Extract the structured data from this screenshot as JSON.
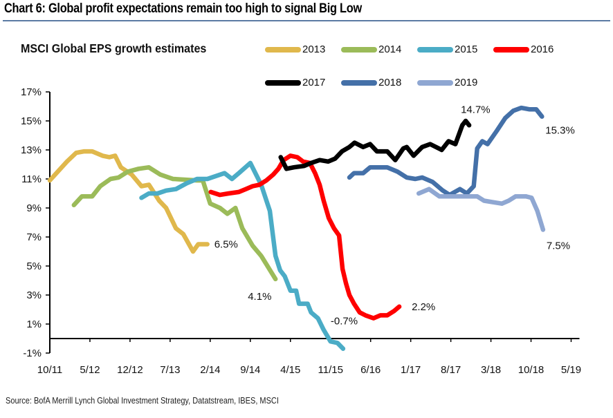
{
  "header": {
    "title": "Chart 6: Global profit expectations remain too high to signal Big Low"
  },
  "footer": {
    "source": "Source:  BofA Merrill Lynch Global Investment Strategy, Datatstream, IBES, MSCI"
  },
  "chart_data": {
    "type": "line",
    "title": "MSCI Global EPS growth estimates",
    "xlabel": "",
    "ylabel": "",
    "x_unit": "months since 10/11",
    "xlim": [
      0,
      91
    ],
    "ylim": [
      -1,
      17
    ],
    "x_ticks": [
      {
        "m": 0,
        "label": "10/11"
      },
      {
        "m": 7,
        "label": "5/12"
      },
      {
        "m": 14,
        "label": "12/12"
      },
      {
        "m": 21,
        "label": "7/13"
      },
      {
        "m": 28,
        "label": "2/14"
      },
      {
        "m": 35,
        "label": "9/14"
      },
      {
        "m": 42,
        "label": "4/15"
      },
      {
        "m": 49,
        "label": "11/15"
      },
      {
        "m": 56,
        "label": "6/16"
      },
      {
        "m": 63,
        "label": "1/17"
      },
      {
        "m": 70,
        "label": "8/17"
      },
      {
        "m": 77,
        "label": "3/18"
      },
      {
        "m": 84,
        "label": "10/18"
      },
      {
        "m": 91,
        "label": "5/19"
      }
    ],
    "y_ticks": [
      {
        "v": 17,
        "label": "17%"
      },
      {
        "v": 15,
        "label": "15%"
      },
      {
        "v": 13,
        "label": "13%"
      },
      {
        "v": 11,
        "label": "11%"
      },
      {
        "v": 9,
        "label": "9%"
      },
      {
        "v": 7,
        "label": "7%"
      },
      {
        "v": 5,
        "label": "5%"
      },
      {
        "v": 3,
        "label": "3%"
      },
      {
        "v": 1,
        "label": "1%"
      },
      {
        "v": -1,
        "label": "-1%"
      }
    ],
    "grid": false,
    "legend_position": "top",
    "series": [
      {
        "name": "2013",
        "color": "#E0B84C",
        "points": [
          [
            0,
            10.9
          ],
          [
            3,
            12.2
          ],
          [
            4.6,
            12.8
          ],
          [
            6,
            12.9
          ],
          [
            7.4,
            12.9
          ],
          [
            9.2,
            12.6
          ],
          [
            10.4,
            12.5
          ],
          [
            11.4,
            12.6
          ],
          [
            12.4,
            11.8
          ],
          [
            14.3,
            11.3
          ],
          [
            16,
            10.5
          ],
          [
            17.3,
            10.6
          ],
          [
            19.1,
            9.5
          ],
          [
            20.3,
            9.0
          ],
          [
            22,
            7.6
          ],
          [
            23.3,
            7.2
          ],
          [
            25,
            6.0
          ],
          [
            25.9,
            6.5
          ],
          [
            27.5,
            6.5
          ]
        ],
        "end_label": "6.5%"
      },
      {
        "name": "2014",
        "color": "#9BBB59",
        "points": [
          [
            4.2,
            9.2
          ],
          [
            5.6,
            9.8
          ],
          [
            7.4,
            9.8
          ],
          [
            8.8,
            10.5
          ],
          [
            10.6,
            11.0
          ],
          [
            12,
            11.1
          ],
          [
            13.6,
            11.5
          ],
          [
            15.5,
            11.7
          ],
          [
            17.3,
            11.8
          ],
          [
            19.3,
            11.3
          ],
          [
            21.5,
            11.0
          ],
          [
            25.7,
            10.9
          ],
          [
            26.7,
            10.9
          ],
          [
            28,
            9.3
          ],
          [
            29.7,
            9.0
          ],
          [
            31,
            8.6
          ],
          [
            32.4,
            9.0
          ],
          [
            33.6,
            7.6
          ],
          [
            35.4,
            6.4
          ],
          [
            36.9,
            5.7
          ],
          [
            39.4,
            4.1
          ]
        ],
        "end_label": "4.1%"
      },
      {
        "name": "2015",
        "color": "#4BACC6",
        "points": [
          [
            16,
            9.7
          ],
          [
            17.3,
            10.0
          ],
          [
            18.8,
            10.0
          ],
          [
            20.3,
            10.2
          ],
          [
            22,
            10.3
          ],
          [
            23.9,
            10.7
          ],
          [
            25.7,
            11.0
          ],
          [
            27.5,
            11.0
          ],
          [
            30.5,
            11.4
          ],
          [
            31.8,
            11.0
          ],
          [
            33,
            11.4
          ],
          [
            35,
            12.1
          ],
          [
            36.9,
            10.6
          ],
          [
            38.4,
            8.8
          ],
          [
            39.4,
            5.7
          ],
          [
            40.2,
            4.7
          ],
          [
            41,
            4.3
          ],
          [
            42,
            3.3
          ],
          [
            43,
            3.3
          ],
          [
            43.5,
            2.4
          ],
          [
            45,
            2.4
          ],
          [
            45.6,
            1.8
          ],
          [
            46.8,
            1.4
          ],
          [
            47.8,
            0.6
          ],
          [
            49,
            -0.2
          ],
          [
            50.2,
            -0.3
          ],
          [
            51.2,
            -0.7
          ]
        ],
        "end_label": "-0.7%"
      },
      {
        "name": "2016",
        "color": "#FF0000",
        "points": [
          [
            28.1,
            10.1
          ],
          [
            29.7,
            9.9
          ],
          [
            31.2,
            10.0
          ],
          [
            33,
            10.1
          ],
          [
            34.2,
            10.3
          ],
          [
            35.4,
            10.5
          ],
          [
            36.6,
            10.6
          ],
          [
            37.8,
            10.9
          ],
          [
            39,
            11.3
          ],
          [
            39.9,
            11.7
          ],
          [
            40.8,
            12.3
          ],
          [
            42,
            12.6
          ],
          [
            43.2,
            12.5
          ],
          [
            44.2,
            12.2
          ],
          [
            45.4,
            12.1
          ],
          [
            46.3,
            11.4
          ],
          [
            47.1,
            10.6
          ],
          [
            47.8,
            9.5
          ],
          [
            48.7,
            8.3
          ],
          [
            49.6,
            7.6
          ],
          [
            50.5,
            7.1
          ],
          [
            51.1,
            4.8
          ],
          [
            51.7,
            3.8
          ],
          [
            52.3,
            3.0
          ],
          [
            53.1,
            2.4
          ],
          [
            54.1,
            1.8
          ],
          [
            55.1,
            1.6
          ],
          [
            56.5,
            1.4
          ],
          [
            57.7,
            1.6
          ],
          [
            58.9,
            1.6
          ],
          [
            60.1,
            1.9
          ],
          [
            61,
            2.2
          ]
        ],
        "end_label": "2.2%"
      },
      {
        "name": "2017",
        "color": "#000000",
        "points": [
          [
            40.3,
            12.5
          ],
          [
            41.3,
            11.7
          ],
          [
            42.6,
            11.8
          ],
          [
            44.4,
            11.9
          ],
          [
            45.6,
            12.1
          ],
          [
            47.1,
            12.3
          ],
          [
            48.6,
            12.2
          ],
          [
            49.8,
            12.4
          ],
          [
            51,
            12.9
          ],
          [
            52.3,
            13.2
          ],
          [
            53.2,
            13.5
          ],
          [
            54.7,
            13.2
          ],
          [
            55.9,
            13.4
          ],
          [
            57.1,
            12.9
          ],
          [
            58.9,
            12.9
          ],
          [
            60.3,
            12.3
          ],
          [
            61.7,
            13.1
          ],
          [
            62.3,
            13.2
          ],
          [
            63.5,
            12.6
          ],
          [
            65,
            13.2
          ],
          [
            66.4,
            13.4
          ],
          [
            68.4,
            13.0
          ],
          [
            69.6,
            13.6
          ],
          [
            70.8,
            13.4
          ],
          [
            72,
            14.7
          ],
          [
            72.6,
            15.0
          ],
          [
            73.2,
            14.7
          ]
        ],
        "end_label": "14.7%"
      },
      {
        "name": "2018",
        "color": "#4470A8",
        "points": [
          [
            52.3,
            11.1
          ],
          [
            53.1,
            11.4
          ],
          [
            54.7,
            11.4
          ],
          [
            55.9,
            11.8
          ],
          [
            57.1,
            11.8
          ],
          [
            58.9,
            11.8
          ],
          [
            60.7,
            11.5
          ],
          [
            62.3,
            11.1
          ],
          [
            63.8,
            11.0
          ],
          [
            65,
            11.1
          ],
          [
            66.8,
            10.8
          ],
          [
            68.6,
            10.2
          ],
          [
            69.8,
            9.9
          ],
          [
            71.6,
            10.3
          ],
          [
            72.8,
            10.0
          ],
          [
            74.0,
            10.5
          ],
          [
            74.6,
            13.1
          ],
          [
            75.5,
            13.6
          ],
          [
            76.4,
            13.4
          ],
          [
            78,
            14.3
          ],
          [
            79.5,
            15.2
          ],
          [
            80.9,
            15.7
          ],
          [
            82.3,
            15.9
          ],
          [
            83.7,
            15.8
          ],
          [
            84.9,
            15.8
          ],
          [
            85.9,
            15.3
          ]
        ],
        "end_label": "15.3%"
      },
      {
        "name": "2019",
        "color": "#8FA7D2",
        "points": [
          [
            64.4,
            10.0
          ],
          [
            66.2,
            10.3
          ],
          [
            68,
            9.8
          ],
          [
            69.8,
            9.8
          ],
          [
            71.6,
            9.8
          ],
          [
            73.4,
            9.8
          ],
          [
            74.6,
            9.8
          ],
          [
            75.8,
            9.5
          ],
          [
            77.3,
            9.4
          ],
          [
            78.9,
            9.3
          ],
          [
            80.1,
            9.5
          ],
          [
            81.3,
            9.8
          ],
          [
            83.1,
            9.8
          ],
          [
            84.1,
            9.7
          ],
          [
            85.1,
            8.8
          ],
          [
            86.1,
            7.5
          ]
        ],
        "end_label": "7.5%"
      }
    ]
  }
}
